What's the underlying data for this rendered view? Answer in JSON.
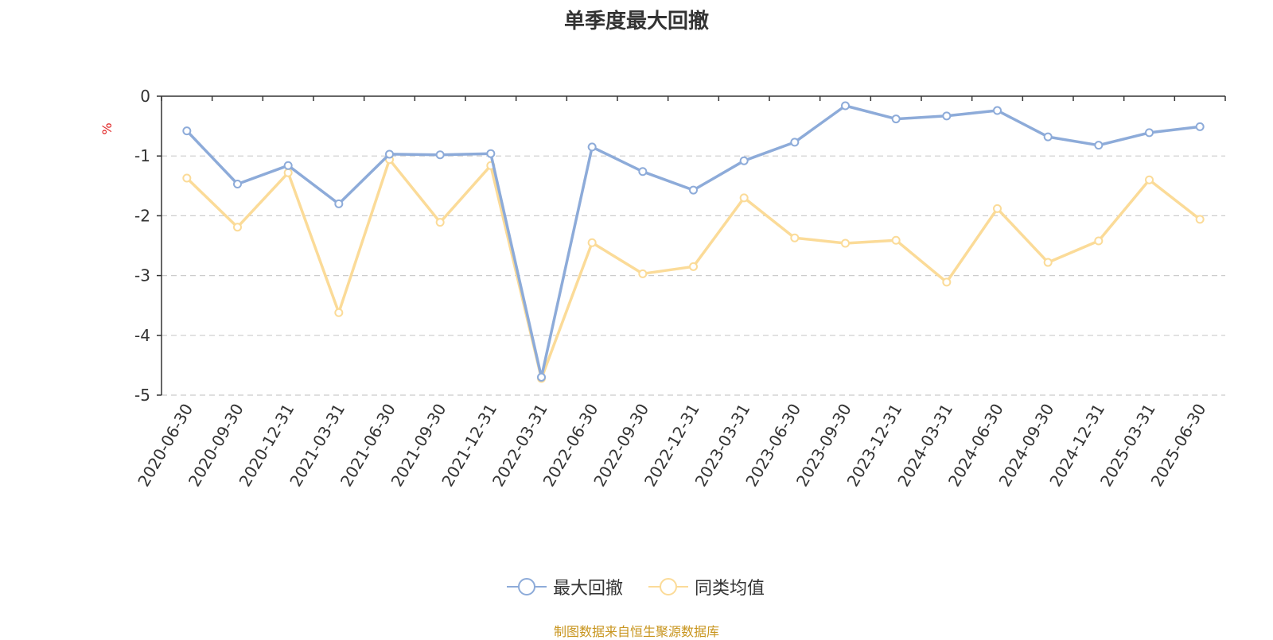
{
  "colors": {
    "series_max_drawdown": "#8dabd9",
    "series_peer_avg": "#fbdb98",
    "unit_label": "#e02020",
    "source_note": "#c8951e"
  },
  "chart_data": {
    "type": "line",
    "title": "单季度最大回撤",
    "ylabel": "%",
    "ylim": [
      -5,
      0
    ],
    "yticks": [
      0,
      -1,
      -2,
      -3,
      -4,
      -5
    ],
    "grid": true,
    "legend_position": "bottom",
    "categories": [
      "2020-06-30",
      "2020-09-30",
      "2020-12-31",
      "2021-03-31",
      "2021-06-30",
      "2021-09-30",
      "2021-12-31",
      "2022-03-31",
      "2022-06-30",
      "2022-09-30",
      "2022-12-31",
      "2023-03-31",
      "2023-06-30",
      "2023-09-30",
      "2023-12-31",
      "2024-03-31",
      "2024-06-30",
      "2024-09-30",
      "2024-12-31",
      "2025-03-31",
      "2025-06-30"
    ],
    "series": [
      {
        "name": "最大回撤",
        "color": "#8dabd9",
        "values": [
          -0.58,
          -1.47,
          -1.16,
          -1.8,
          -0.97,
          -0.98,
          -0.96,
          -4.7,
          -0.85,
          -1.26,
          -1.57,
          -1.08,
          -0.77,
          -0.16,
          -0.38,
          -0.33,
          -0.24,
          -0.68,
          -0.82,
          -0.61,
          -0.51
        ]
      },
      {
        "name": "同类均值",
        "color": "#fbdb98",
        "values": [
          -1.37,
          -2.19,
          -1.28,
          -3.62,
          -1.06,
          -2.11,
          -1.16,
          -4.72,
          -2.45,
          -2.97,
          -2.85,
          -1.7,
          -2.37,
          -2.46,
          -2.41,
          -3.11,
          -1.88,
          -2.78,
          -2.42,
          -1.4,
          -2.06
        ]
      }
    ]
  },
  "source_note": "制图数据来自恒生聚源数据库"
}
